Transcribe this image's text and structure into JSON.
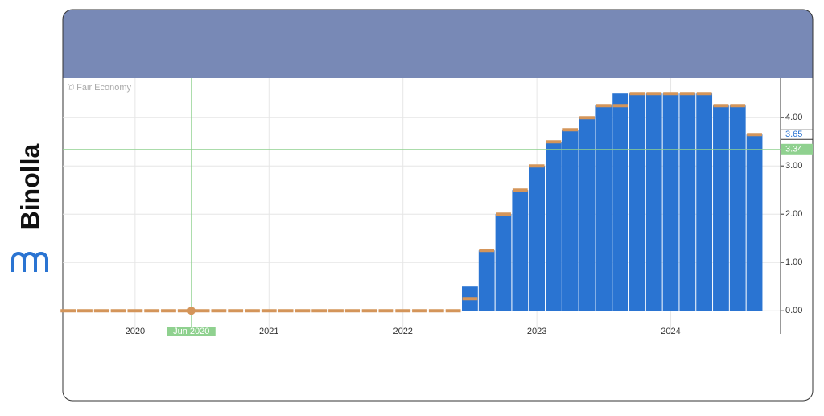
{
  "brand": "Binolla",
  "chart_data": {
    "type": "bar",
    "watermark": "© Fair Economy",
    "x": [
      2019.5,
      2019.625,
      2019.75,
      2019.875,
      2020,
      2020.125,
      2020.25,
      2020.375,
      2020.5,
      2020.625,
      2020.75,
      2020.875,
      2021,
      2021.125,
      2021.25,
      2021.375,
      2021.5,
      2021.625,
      2021.75,
      2021.875,
      2022,
      2022.125,
      2022.25,
      2022.375,
      2022.5,
      2022.625,
      2022.75,
      2022.875,
      2023,
      2023.125,
      2023.25,
      2023.375,
      2023.5,
      2023.625,
      2023.75,
      2023.875,
      2024,
      2024.125,
      2024.25,
      2024.375,
      2024.5,
      2024.625
    ],
    "xlim": [
      2019.46,
      2024.82
    ],
    "xticks": [
      2020,
      2021,
      2022,
      2023,
      2024
    ],
    "ylim": [
      -0.48,
      4.82
    ],
    "yticks": [
      {
        "value": 0,
        "label": "0.00"
      },
      {
        "value": 1,
        "label": "1.00"
      },
      {
        "value": 2,
        "label": "2.00"
      },
      {
        "value": 3,
        "label": "3.00"
      },
      {
        "value": 4,
        "label": "4.00"
      }
    ],
    "grid": true,
    "series": [
      {
        "color": "#2a74d2",
        "values": [
          0,
          0,
          0,
          0,
          0,
          0,
          0,
          0,
          0,
          0,
          0,
          0,
          0,
          0,
          0,
          0,
          0,
          0,
          0,
          0,
          0,
          0,
          0,
          0,
          0.5,
          1.25,
          2.0,
          2.5,
          3.0,
          3.5,
          3.75,
          4.0,
          4.25,
          4.5,
          4.5,
          4.5,
          4.5,
          4.5,
          4.5,
          4.25,
          4.25,
          3.65
        ]
      },
      {
        "color": "#d4955a",
        "values": [
          0,
          0,
          0,
          0,
          0,
          0,
          0,
          0,
          0,
          0,
          0,
          0,
          0,
          0,
          0,
          0,
          0,
          0,
          0,
          0,
          0,
          0,
          0,
          0,
          0.25,
          1.25,
          2.0,
          2.5,
          3.0,
          3.5,
          3.75,
          4.0,
          4.25,
          4.25,
          4.5,
          4.5,
          4.5,
          4.5,
          4.5,
          4.25,
          4.25,
          3.65
        ]
      }
    ],
    "crosshair": {
      "x": 2020.42,
      "x_label": "Jun 2020",
      "y": 3.34,
      "color": "#8fd18f"
    }
  }
}
